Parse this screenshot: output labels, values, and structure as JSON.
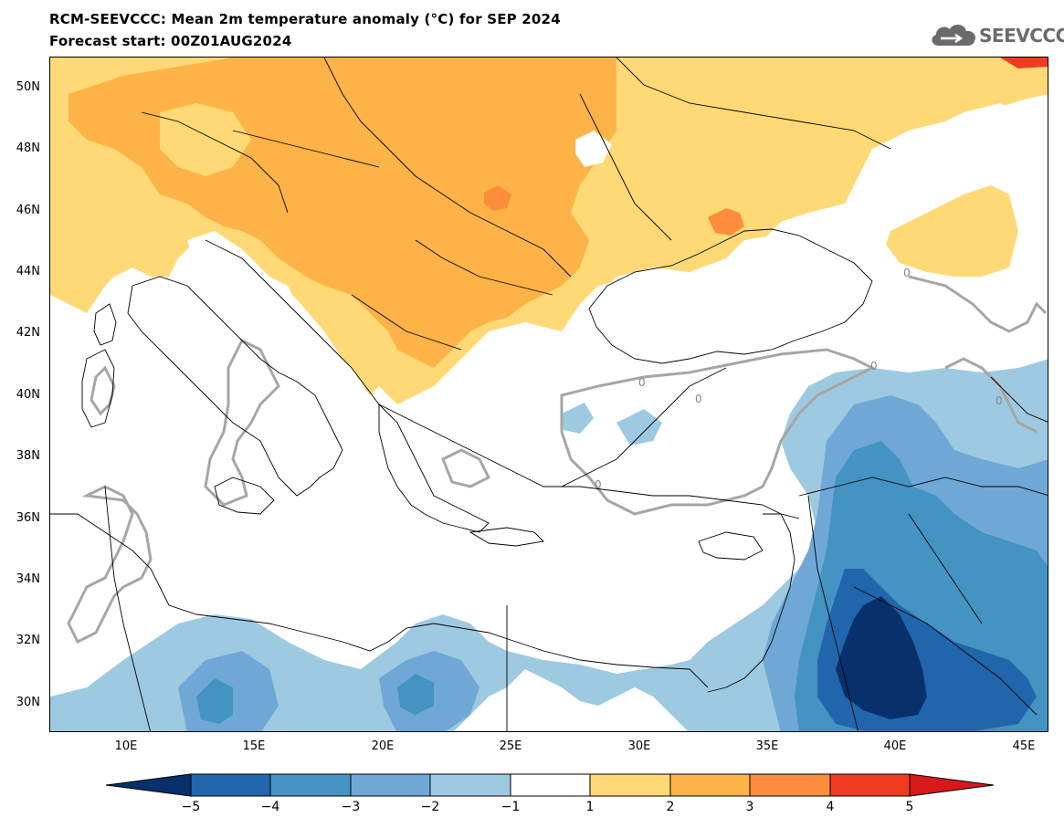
{
  "header": {
    "title": "RCM-SEEVCCC: Mean 2m temperature anomaly (°C) for SEP 2024",
    "subtitle": "Forecast start: 00Z01AUG2024",
    "logo_text": "SEEVCCC"
  },
  "map": {
    "lat_labels": [
      "50N",
      "48N",
      "46N",
      "44N",
      "42N",
      "40N",
      "38N",
      "36N",
      "34N",
      "32N",
      "30N"
    ],
    "lon_labels": [
      "10E",
      "15E",
      "20E",
      "25E",
      "30E",
      "35E",
      "40E",
      "45E"
    ],
    "contour_label": "0"
  },
  "colorbar": {
    "levels": [
      "−5",
      "−4",
      "−3",
      "−2",
      "−1",
      "1",
      "2",
      "3",
      "4",
      "5"
    ],
    "colors": [
      "#08306b",
      "#2166ac",
      "#4393c3",
      "#6fa8d6",
      "#9ecae1",
      "#ffffff",
      "#fed976",
      "#fdb347",
      "#fd8d3c",
      "#f03b20",
      "#d7191c"
    ]
  }
}
